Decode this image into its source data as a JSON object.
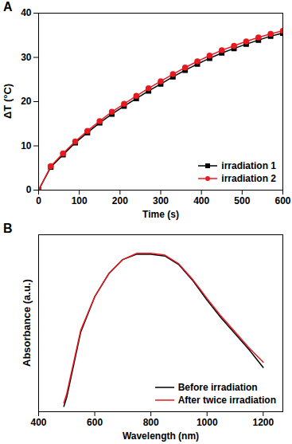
{
  "chart_data": [
    {
      "type": "line",
      "title": "A",
      "x_label": "Time (s)",
      "y_label": "ΔT (°C)",
      "x": [
        0,
        30,
        60,
        90,
        120,
        150,
        180,
        210,
        240,
        270,
        300,
        330,
        360,
        390,
        420,
        450,
        480,
        510,
        540,
        570,
        600
      ],
      "series": [
        {
          "name": "irradiation 1",
          "color": "#000000",
          "marker": "square",
          "values": [
            0,
            5.2,
            8.0,
            10.7,
            13.0,
            15.2,
            17.2,
            19.0,
            20.7,
            22.4,
            24.0,
            25.6,
            27.1,
            28.5,
            29.8,
            31.0,
            32.0,
            33.0,
            33.9,
            34.8,
            35.5
          ]
        },
        {
          "name": "irradiation 2",
          "color": "#e8191f",
          "marker": "circle",
          "values": [
            0,
            5.4,
            8.3,
            11.0,
            13.4,
            15.6,
            17.7,
            19.5,
            21.3,
            23.0,
            24.6,
            26.2,
            27.7,
            29.1,
            30.4,
            31.6,
            32.6,
            33.6,
            34.5,
            35.3,
            36.0
          ]
        }
      ],
      "xlim": [
        0,
        600
      ],
      "xticks": [
        0,
        100,
        200,
        300,
        400,
        500,
        600
      ],
      "ylim": [
        0,
        40
      ],
      "yticks": [
        0,
        10,
        20,
        30,
        40
      ],
      "legend": "lower right"
    },
    {
      "type": "line",
      "title": "B",
      "x_label": "Wavelength (nm)",
      "y_label": "Absorbance (a.u.)",
      "x": [
        490,
        500,
        550,
        600,
        650,
        700,
        750,
        800,
        850,
        900,
        950,
        1000,
        1050,
        1100,
        1150,
        1200
      ],
      "series": [
        {
          "name": "Before irradiation",
          "color": "#000000",
          "values": [
            0.03,
            0.08,
            0.45,
            0.65,
            0.78,
            0.86,
            0.89,
            0.89,
            0.88,
            0.83,
            0.74,
            0.63,
            0.53,
            0.44,
            0.35,
            0.25
          ]
        },
        {
          "name": "After twice irradiation",
          "color": "#e8191f",
          "values": [
            0.05,
            0.1,
            0.46,
            0.65,
            0.78,
            0.86,
            0.895,
            0.895,
            0.885,
            0.835,
            0.745,
            0.64,
            0.54,
            0.45,
            0.36,
            0.28
          ]
        }
      ],
      "xlim": [
        400,
        1270
      ],
      "xticks": [
        400,
        600,
        800,
        1000,
        1200
      ],
      "ylim": [
        0,
        1
      ],
      "tick_labels": "x",
      "legend": "lower right"
    }
  ]
}
